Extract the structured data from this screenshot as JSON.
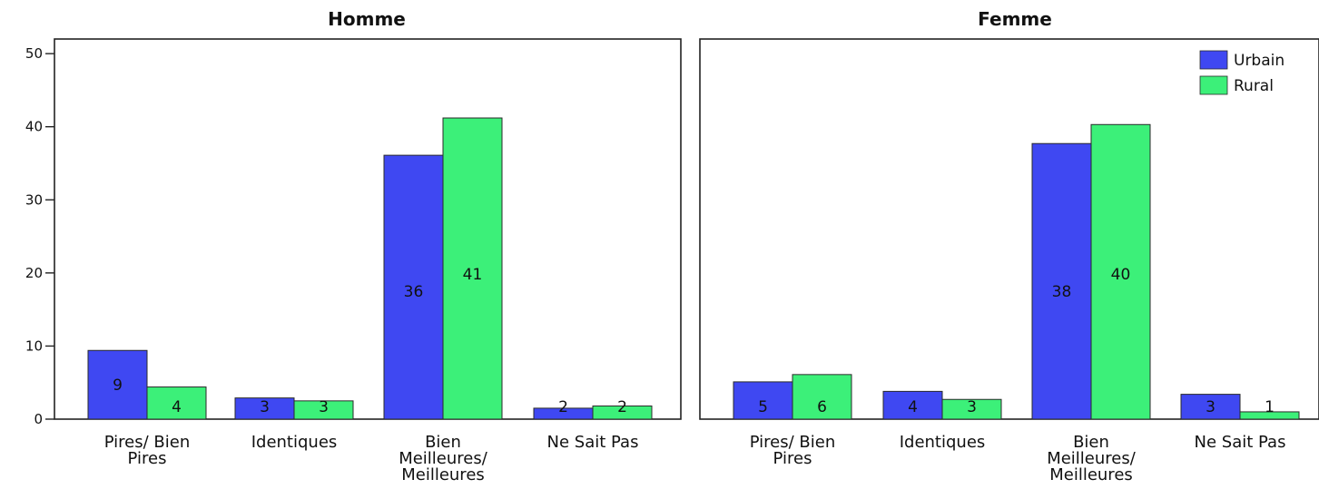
{
  "chart_data": {
    "type": "bar",
    "panels": [
      {
        "title": "Homme",
        "categories": [
          [
            "Pires/ Bien",
            "Pires"
          ],
          [
            "Identiques"
          ],
          [
            "Bien",
            "Meilleures/",
            "Meilleures"
          ],
          [
            "Ne Sait Pas"
          ]
        ],
        "series": [
          {
            "name": "Urbain",
            "values": [
              9.4,
              2.9,
              36.1,
              1.5
            ],
            "labels": [
              "9",
              "3",
              "36",
              "2"
            ]
          },
          {
            "name": "Rural",
            "values": [
              4.4,
              2.5,
              41.2,
              1.8
            ],
            "labels": [
              "4",
              "3",
              "41",
              "2"
            ]
          }
        ]
      },
      {
        "title": "Femme",
        "categories": [
          [
            "Pires/ Bien",
            "Pires"
          ],
          [
            "Identiques"
          ],
          [
            "Bien",
            "Meilleures/",
            "Meilleures"
          ],
          [
            "Ne Sait Pas"
          ]
        ],
        "series": [
          {
            "name": "Urbain",
            "values": [
              5.1,
              3.8,
              37.7,
              3.4
            ],
            "labels": [
              "5",
              "4",
              "38",
              "3"
            ]
          },
          {
            "name": "Rural",
            "values": [
              6.1,
              2.7,
              40.3,
              1.0
            ],
            "labels": [
              "6",
              "3",
              "40",
              "1"
            ]
          }
        ]
      }
    ],
    "ylim": [
      0,
      52
    ],
    "yticks": [
      0,
      10,
      20,
      30,
      40,
      50
    ],
    "legend": {
      "placement": "top-right",
      "entries": [
        "Urbain",
        "Rural"
      ]
    },
    "colors": {
      "Urbain": "#3f48f2",
      "Rural": "#3cf079"
    },
    "grid": false
  }
}
